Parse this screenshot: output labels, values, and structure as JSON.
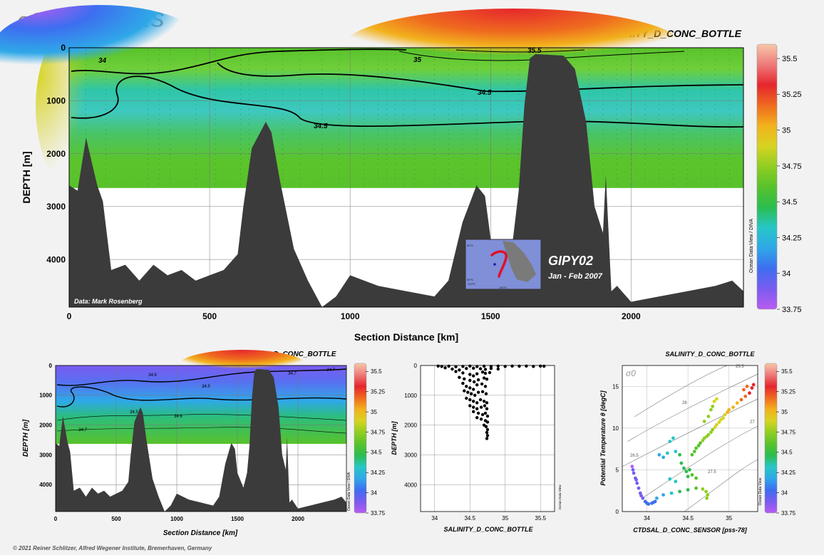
{
  "logo": "eGEOTRACES",
  "footer": "© 2021 Reiner Schlitzer, Alfred Wegener Institute, Bremerhaven, Germany",
  "colors": {
    "bathymetry": "#3b3b3b",
    "scale": [
      "#b85cf0",
      "#7a5cf0",
      "#3d6ef0",
      "#2fa8e8",
      "#27c6c6",
      "#2bbd4f",
      "#58c22b",
      "#8fce22",
      "#d7d322",
      "#f2b21d",
      "#ef6a1f",
      "#e5262d",
      "#ee7a7a",
      "#f7c7a8"
    ]
  },
  "main": {
    "title": "SALINITY_D_CONC_BOTTLE",
    "xlabel": "Section Distance [km]",
    "ylabel": "DEPTH [m]",
    "credit": "Data: Mark Rosenberg",
    "odv_tag": "Ocean Data View / DIVA",
    "colorbar_labels": [
      "35.5",
      "35.25",
      "35",
      "34.75",
      "34.5",
      "34.25",
      "34",
      "33.75"
    ],
    "contour_labels": [
      "34",
      "35",
      "35.5",
      "34.5",
      "34.5"
    ],
    "inset": {
      "cruise": "GIPY02",
      "date": "Jan - Feb 2007",
      "map_ticks": [
        "120°E",
        "150°E",
        "30°S",
        "60°S"
      ]
    }
  },
  "panel_left": {
    "title": "SALINITY_D_CONC_BOTTLE",
    "xlabel": "Section Distance [km]",
    "ylabel": "DEPTH [m]",
    "odv_tag": "Ocean Data View / DIVA",
    "colorbar_labels": [
      "35.5",
      "35.25",
      "35",
      "34.75",
      "34.5",
      "34.25",
      "34",
      "33.75"
    ],
    "contour_labels": [
      "34.6",
      "34.7",
      "34.7",
      "34.5",
      "34.5",
      "34.6",
      "34.7"
    ]
  },
  "panel_mid": {
    "xlabel": "SALINITY_D_CONC_BOTTLE",
    "ylabel": "DEPTH [m]",
    "odv_tag": "Ocean Data View"
  },
  "panel_right": {
    "title": "SALINITY_D_CONC_BOTTLE",
    "xlabel": "CTDSAL_D_CONC_SENSOR [pss-78]",
    "ylabel": "Potential Temperature θ [degC]",
    "sigma_label": "σ0",
    "odv_tag": "Ocean Data View",
    "isopycnal_labels": [
      "25.5",
      "26",
      "26.5",
      "27",
      "27.5"
    ],
    "colorbar_labels": [
      "35.5",
      "35.25",
      "35",
      "34.75",
      "34.5",
      "34.25",
      "34",
      "33.75"
    ]
  },
  "chart_data": [
    {
      "type": "heatmap",
      "title": "SALINITY_D_CONC_BOTTLE",
      "xlabel": "Section Distance [km]",
      "ylabel": "DEPTH [m]",
      "xlim": [
        0,
        2400
      ],
      "ylim": [
        4900,
        0
      ],
      "xticks": [
        0,
        500,
        1000,
        1500,
        2000
      ],
      "yticks": [
        0,
        1000,
        2000,
        3000,
        4000
      ],
      "colorbar": {
        "min": 33.75,
        "max": 35.6,
        "ticks": [
          35.5,
          35.25,
          35,
          34.75,
          34.5,
          34.25,
          34,
          33.75
        ]
      },
      "bathymetry": {
        "x": [
          0,
          30,
          60,
          100,
          120,
          150,
          200,
          250,
          300,
          350,
          400,
          450,
          500,
          550,
          600,
          620,
          650,
          700,
          720,
          750,
          800,
          850,
          900,
          950,
          1000,
          1100,
          1200,
          1300,
          1350,
          1400,
          1450,
          1480,
          1500,
          1550,
          1580,
          1600,
          1620,
          1640,
          1660,
          1700,
          1760,
          1800,
          1840,
          1870,
          1900,
          1910,
          1930,
          1950,
          2000,
          2100,
          2200,
          2300,
          2360,
          2400
        ],
        "depth": [
          2600,
          2700,
          1700,
          2600,
          2900,
          4200,
          4100,
          4400,
          4100,
          4300,
          4200,
          4400,
          4300,
          4200,
          3900,
          3000,
          1900,
          1400,
          1600,
          2500,
          3800,
          4400,
          4900,
          4700,
          4300,
          4500,
          4600,
          4700,
          4400,
          3300,
          2600,
          2800,
          3600,
          4100,
          3600,
          2700,
          1100,
          200,
          120,
          130,
          150,
          400,
          1400,
          3000,
          3500,
          2400,
          4600,
          4500,
          4800,
          4700,
          4600,
          4500,
          4400,
          4600
        ]
      },
      "data_limit_depth": 2650,
      "contours": [
        {
          "level": 34,
          "label": "34"
        },
        {
          "level": 34.5,
          "label": "34.5"
        },
        {
          "level": 35,
          "label": "35"
        },
        {
          "level": 35.5,
          "label": "35.5"
        }
      ]
    },
    {
      "type": "heatmap",
      "title": "SALINITY_D_CONC_BOTTLE",
      "xlabel": "Section Distance [km]",
      "ylabel": "DEPTH [m]",
      "xlim": [
        0,
        2400
      ],
      "ylim": [
        4900,
        0
      ],
      "xticks": [
        0,
        500,
        1000,
        1500,
        2000
      ],
      "yticks": [
        0,
        1000,
        2000,
        3000,
        4000
      ],
      "contours": [
        {
          "level": 34.5,
          "label": "34.5"
        },
        {
          "level": 34.6,
          "label": "34.6"
        },
        {
          "level": 34.7,
          "label": "34.7"
        }
      ]
    },
    {
      "type": "scatter",
      "xlabel": "SALINITY_D_CONC_BOTTLE",
      "ylabel": "DEPTH [m]",
      "xlim": [
        33.8,
        35.7
      ],
      "ylim": [
        4900,
        0
      ],
      "xticks": [
        34,
        34.5,
        35,
        35.5
      ],
      "yticks": [
        0,
        1000,
        2000,
        3000,
        4000
      ],
      "points": [
        [
          34.05,
          20
        ],
        [
          34.1,
          30
        ],
        [
          34.2,
          25
        ],
        [
          34.3,
          40
        ],
        [
          34.4,
          30
        ],
        [
          34.5,
          20
        ],
        [
          34.6,
          35
        ],
        [
          34.7,
          25
        ],
        [
          34.8,
          30
        ],
        [
          34.9,
          20
        ],
        [
          35.0,
          30
        ],
        [
          35.1,
          20
        ],
        [
          35.2,
          25
        ],
        [
          35.3,
          20
        ],
        [
          35.4,
          30
        ],
        [
          35.5,
          20
        ],
        [
          35.55,
          25
        ],
        [
          34.15,
          80
        ],
        [
          34.25,
          120
        ],
        [
          34.35,
          150
        ],
        [
          34.45,
          100
        ],
        [
          34.55,
          90
        ],
        [
          34.65,
          110
        ],
        [
          34.72,
          130
        ],
        [
          34.8,
          100
        ],
        [
          34.9,
          120
        ],
        [
          34.3,
          200
        ],
        [
          34.4,
          250
        ],
        [
          34.5,
          300
        ],
        [
          34.55,
          350
        ],
        [
          34.6,
          280
        ],
        [
          34.68,
          220
        ],
        [
          34.72,
          260
        ],
        [
          34.78,
          240
        ],
        [
          34.35,
          400
        ],
        [
          34.42,
          450
        ],
        [
          34.5,
          500
        ],
        [
          34.56,
          550
        ],
        [
          34.62,
          480
        ],
        [
          34.7,
          420
        ],
        [
          34.74,
          460
        ],
        [
          34.4,
          600
        ],
        [
          34.45,
          700
        ],
        [
          34.5,
          750
        ],
        [
          34.55,
          800
        ],
        [
          34.6,
          650
        ],
        [
          34.67,
          620
        ],
        [
          34.72,
          700
        ],
        [
          34.42,
          850
        ],
        [
          34.47,
          900
        ],
        [
          34.52,
          950
        ],
        [
          34.57,
          1000
        ],
        [
          34.62,
          900
        ],
        [
          34.68,
          880
        ],
        [
          34.73,
          950
        ],
        [
          34.45,
          1100
        ],
        [
          34.5,
          1150
        ],
        [
          34.55,
          1200
        ],
        [
          34.6,
          1250
        ],
        [
          34.65,
          1150
        ],
        [
          34.7,
          1200
        ],
        [
          34.74,
          1250
        ],
        [
          34.5,
          1350
        ],
        [
          34.55,
          1400
        ],
        [
          34.6,
          1450
        ],
        [
          34.66,
          1400
        ],
        [
          34.71,
          1350
        ],
        [
          34.74,
          1450
        ],
        [
          34.55,
          1550
        ],
        [
          34.62,
          1600
        ],
        [
          34.68,
          1650
        ],
        [
          34.72,
          1600
        ],
        [
          34.75,
          1700
        ],
        [
          34.6,
          1750
        ],
        [
          34.66,
          1800
        ],
        [
          34.72,
          1850
        ],
        [
          34.75,
          1900
        ],
        [
          34.7,
          2000
        ],
        [
          34.73,
          2050
        ],
        [
          34.75,
          2150
        ],
        [
          34.74,
          2250
        ],
        [
          34.75,
          2350
        ],
        [
          34.74,
          2450
        ]
      ]
    },
    {
      "type": "scatter",
      "xlabel": "CTDSAL_D_CONC_SENSOR [pss-78]",
      "ylabel": "Potential Temperature θ [degC]",
      "xlim": [
        33.7,
        35.35
      ],
      "ylim": [
        0,
        17.5
      ],
      "xticks": [
        34,
        34.5,
        35
      ],
      "yticks": [
        0,
        5,
        10,
        15
      ],
      "isopycnals": [
        25.5,
        26,
        26.5,
        27,
        27.5
      ],
      "points": [
        [
          33.82,
          5.4
        ],
        [
          33.84,
          4.6
        ],
        [
          33.86,
          4.0
        ],
        [
          33.88,
          3.4
        ],
        [
          33.9,
          2.8
        ],
        [
          33.92,
          2.2
        ],
        [
          33.95,
          1.6
        ],
        [
          33.98,
          1.2
        ],
        [
          34.02,
          0.9
        ],
        [
          34.06,
          1.0
        ],
        [
          34.1,
          1.2
        ],
        [
          33.83,
          5.0
        ],
        [
          33.87,
          3.8
        ],
        [
          33.93,
          1.9
        ],
        [
          34.0,
          1.0
        ],
        [
          34.08,
          1.1
        ],
        [
          34.12,
          1.6
        ],
        [
          34.2,
          2.0
        ],
        [
          34.3,
          2.2
        ],
        [
          34.4,
          2.4
        ],
        [
          34.5,
          2.6
        ],
        [
          34.6,
          2.8
        ],
        [
          34.68,
          2.7
        ],
        [
          34.72,
          2.4
        ],
        [
          34.74,
          2.0
        ],
        [
          34.73,
          1.6
        ],
        [
          34.15,
          6.8
        ],
        [
          34.2,
          6.5
        ],
        [
          34.25,
          7.0
        ],
        [
          34.28,
          8.4
        ],
        [
          34.32,
          8.8
        ],
        [
          34.35,
          7.2
        ],
        [
          34.4,
          6.8
        ],
        [
          34.42,
          5.8
        ],
        [
          34.45,
          5.2
        ],
        [
          34.48,
          4.8
        ],
        [
          34.52,
          5.0
        ],
        [
          34.55,
          6.8
        ],
        [
          34.6,
          7.6
        ],
        [
          34.65,
          8.2
        ],
        [
          34.7,
          8.8
        ],
        [
          34.75,
          9.2
        ],
        [
          34.8,
          9.8
        ],
        [
          34.85,
          10.4
        ],
        [
          34.9,
          11.0
        ],
        [
          34.95,
          11.6
        ],
        [
          35.0,
          12.2
        ],
        [
          34.58,
          7.2
        ],
        [
          34.63,
          7.9
        ],
        [
          34.68,
          8.5
        ],
        [
          34.73,
          9.0
        ],
        [
          34.78,
          9.5
        ],
        [
          34.83,
          10.1
        ],
        [
          34.88,
          10.7
        ],
        [
          34.93,
          11.2
        ],
        [
          34.98,
          11.9
        ],
        [
          34.7,
          10.8
        ],
        [
          34.75,
          11.4
        ],
        [
          34.78,
          12.2
        ],
        [
          34.8,
          12.6
        ],
        [
          34.82,
          13.2
        ],
        [
          34.85,
          13.5
        ],
        [
          35.05,
          12.5
        ],
        [
          35.1,
          13.0
        ],
        [
          35.15,
          13.4
        ],
        [
          35.2,
          13.8
        ],
        [
          35.25,
          14.2
        ],
        [
          35.28,
          14.8
        ],
        [
          35.3,
          15.2
        ],
        [
          35.22,
          15.0
        ],
        [
          35.18,
          14.6
        ],
        [
          34.5,
          4.2
        ],
        [
          34.55,
          4.4
        ],
        [
          34.6,
          4.0
        ],
        [
          34.35,
          3.6
        ],
        [
          34.28,
          3.9
        ]
      ]
    }
  ]
}
